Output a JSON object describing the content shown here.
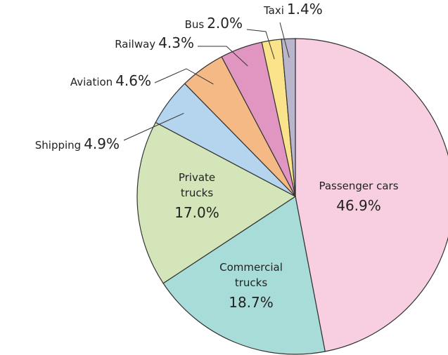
{
  "chart_data": {
    "type": "pie",
    "categories": [
      "Passenger cars",
      "Commercial trucks",
      "Private trucks",
      "Shipping",
      "Aviation",
      "Railway",
      "Bus",
      "Taxi"
    ],
    "values": [
      46.9,
      18.7,
      17.0,
      4.9,
      4.6,
      4.3,
      2.0,
      1.4
    ],
    "value_labels": [
      "46.9%",
      "18.7%",
      "17.0%",
      "4.9%",
      "4.6%",
      "4.3%",
      "2.0%",
      "1.4%"
    ],
    "colors": [
      "#f7cfe0",
      "#a8dcd8",
      "#d3e5b9",
      "#b5d5ef",
      "#f5b985",
      "#e196c1",
      "#fbe38c",
      "#b9b5cd"
    ]
  }
}
